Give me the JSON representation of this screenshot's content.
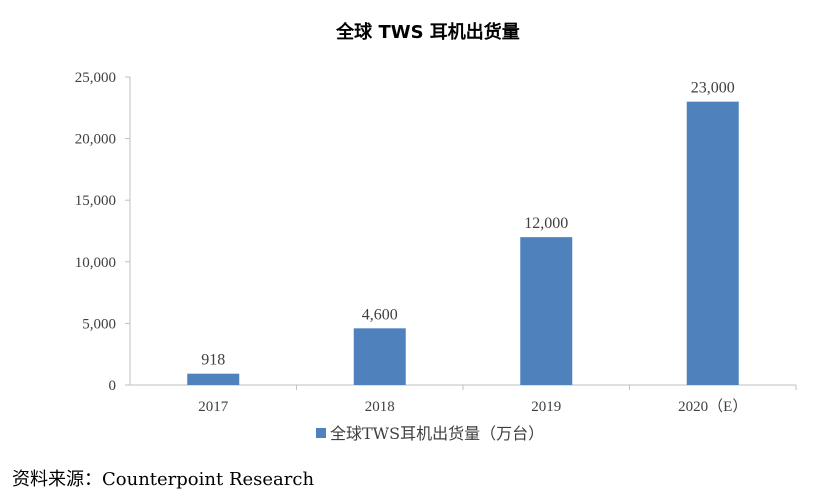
{
  "chart_data": {
    "type": "bar",
    "title": "全球 TWS 耳机出货量",
    "categories": [
      "2017",
      "2018",
      "2019",
      "2020（E）"
    ],
    "series": [
      {
        "name": "全球TWS耳机出货量（万台）",
        "values": [
          918,
          4600,
          12000,
          23000
        ],
        "color": "#4f81bd"
      }
    ],
    "data_labels": [
      "918",
      "4,600",
      "12,000",
      "23,000"
    ],
    "y_ticks": [
      {
        "value": 0,
        "label": "0"
      },
      {
        "value": 5000,
        "label": "5,000"
      },
      {
        "value": 10000,
        "label": "10,000"
      },
      {
        "value": 15000,
        "label": "15,000"
      },
      {
        "value": 20000,
        "label": "20,000"
      },
      {
        "value": 25000,
        "label": "25,000"
      }
    ],
    "ylim": [
      0,
      25000
    ],
    "grid": false,
    "legend_position": "bottom"
  },
  "source": "资料来源：Counterpoint Research"
}
